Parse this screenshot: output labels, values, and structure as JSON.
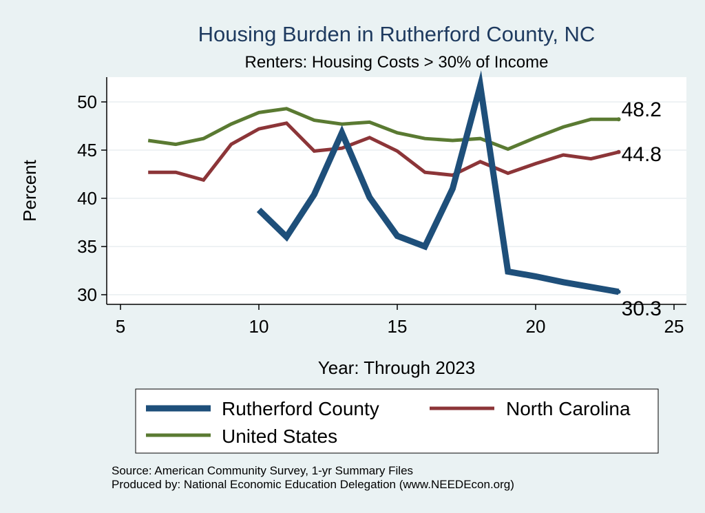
{
  "chart_data": {
    "type": "line",
    "title": "Housing Burden in Rutherford County, NC",
    "subtitle": "Renters: Housing Costs > 30% of Income",
    "xlabel": "Year: Through 2023",
    "ylabel": "Percent",
    "xlim": [
      5,
      25
    ],
    "ylim": [
      29,
      52.5
    ],
    "xticks": [
      5,
      10,
      15,
      20,
      25
    ],
    "yticks": [
      30,
      35,
      40,
      45,
      50
    ],
    "legend_position": "bottom",
    "series": [
      {
        "name": "Rutherford County",
        "color": "#1e4f7a",
        "x": [
          10,
          11,
          12,
          13,
          14,
          15,
          16,
          17,
          18,
          19,
          20,
          21,
          22,
          23
        ],
        "values": [
          38.8,
          36.0,
          40.4,
          46.8,
          40.1,
          36.1,
          35.0,
          41.0,
          51.7,
          32.4,
          31.9,
          31.3,
          30.8,
          30.3
        ],
        "end_label": "30.3"
      },
      {
        "name": "North Carolina",
        "color": "#8c3538",
        "x": [
          6,
          7,
          8,
          9,
          10,
          11,
          12,
          13,
          14,
          15,
          16,
          17,
          18,
          19,
          20,
          21,
          22,
          23
        ],
        "values": [
          42.7,
          42.7,
          41.9,
          45.6,
          47.2,
          47.8,
          44.9,
          45.2,
          46.3,
          44.9,
          42.7,
          42.4,
          43.8,
          42.6,
          43.6,
          44.5,
          44.1,
          44.8
        ],
        "end_label": "44.8"
      },
      {
        "name": "United States",
        "color": "#5a7a32",
        "x": [
          6,
          7,
          8,
          9,
          10,
          11,
          12,
          13,
          14,
          15,
          16,
          17,
          18,
          19,
          20,
          21,
          22,
          23
        ],
        "values": [
          46.0,
          45.6,
          46.2,
          47.7,
          48.9,
          49.3,
          48.1,
          47.7,
          47.9,
          46.8,
          46.2,
          46.0,
          46.2,
          45.1,
          46.3,
          47.4,
          48.2,
          48.2
        ],
        "end_label": "48.2"
      }
    ]
  },
  "footer": {
    "source": "Source: American Community Survey, 1-yr Summary Files",
    "produced_by": "Produced by: National Economic Education Delegation (www.NEEDEcon.org)"
  }
}
